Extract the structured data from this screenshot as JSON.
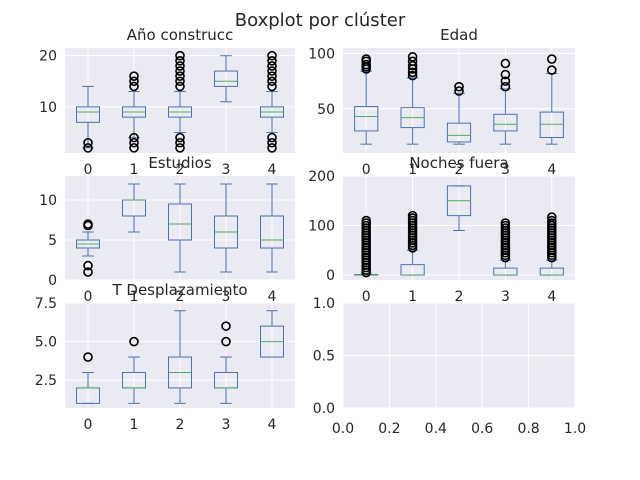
{
  "figure": {
    "suptitle": "Boxplot por clúster"
  },
  "chart_data": [
    {
      "type": "box",
      "title": "Año construcc",
      "categories": [
        "0",
        "1",
        "2",
        "3",
        "4"
      ],
      "ylim": [
        1,
        21.5
      ],
      "yticks": [
        10,
        20
      ],
      "grid": true,
      "boxes": [
        {
          "whislo": 2,
          "q1": 7,
          "med": 9,
          "q3": 10,
          "whishi": 14,
          "fliers": [
            2,
            3
          ]
        },
        {
          "whislo": 4,
          "q1": 8,
          "med": 9,
          "q3": 10,
          "whishi": 13,
          "fliers": [
            2,
            3,
            4,
            14,
            15,
            16
          ]
        },
        {
          "whislo": 5,
          "q1": 8,
          "med": 9,
          "q3": 10,
          "whishi": 13,
          "fliers": [
            2,
            3,
            4,
            14,
            15,
            16,
            17,
            18,
            19,
            20
          ]
        },
        {
          "whislo": 11,
          "q1": 14,
          "med": 15,
          "q3": 17,
          "whishi": 20,
          "fliers": []
        },
        {
          "whislo": 5,
          "q1": 8,
          "med": 9,
          "q3": 10,
          "whishi": 13,
          "fliers": [
            2,
            3,
            4,
            14,
            15,
            16,
            17,
            18,
            19,
            20
          ]
        }
      ]
    },
    {
      "type": "box",
      "title": "Edad",
      "categories": [
        "0",
        "1",
        "2",
        "3",
        "4"
      ],
      "ylim": [
        10,
        105
      ],
      "yticks": [
        50,
        100
      ],
      "grid": true,
      "boxes": [
        {
          "whislo": 18,
          "q1": 30,
          "med": 43,
          "q3": 52,
          "whishi": 84,
          "fliers": [
            86,
            88,
            90,
            93,
            95
          ]
        },
        {
          "whislo": 18,
          "q1": 33,
          "med": 42,
          "q3": 51,
          "whishi": 78,
          "fliers": [
            80,
            83,
            86,
            89,
            93,
            97
          ]
        },
        {
          "whislo": 18,
          "q1": 20,
          "med": 26,
          "q3": 37,
          "whishi": 64,
          "fliers": [
            66,
            70
          ]
        },
        {
          "whislo": 18,
          "q1": 30,
          "med": 36,
          "q3": 45,
          "whishi": 68,
          "fliers": [
            70,
            75,
            81,
            91
          ]
        },
        {
          "whislo": 18,
          "q1": 24,
          "med": 36,
          "q3": 47,
          "whishi": 82,
          "fliers": [
            85,
            95
          ]
        }
      ]
    },
    {
      "type": "box",
      "title": "Estudios",
      "categories": [
        "0",
        "1",
        "2",
        "3",
        "4"
      ],
      "ylim": [
        0,
        13
      ],
      "yticks": [
        0,
        5,
        10
      ],
      "grid": true,
      "boxes": [
        {
          "whislo": 3,
          "q1": 4,
          "med": 4.5,
          "q3": 5,
          "whishi": 6,
          "fliers": [
            1,
            1.8,
            6.8,
            7
          ]
        },
        {
          "whislo": 6,
          "q1": 8,
          "med": 10,
          "q3": 10,
          "whishi": 12,
          "fliers": []
        },
        {
          "whislo": 1,
          "q1": 5,
          "med": 7,
          "q3": 9.5,
          "whishi": 12,
          "fliers": []
        },
        {
          "whislo": 1,
          "q1": 4,
          "med": 6,
          "q3": 8,
          "whishi": 12,
          "fliers": []
        },
        {
          "whislo": 1,
          "q1": 4,
          "med": 5,
          "q3": 8,
          "whishi": 12,
          "fliers": []
        }
      ]
    },
    {
      "type": "box",
      "title": "Noches fuera",
      "categories": [
        "0",
        "1",
        "2",
        "3",
        "4"
      ],
      "ylim": [
        -10,
        200
      ],
      "yticks": [
        0,
        100,
        200
      ],
      "grid": true,
      "boxes": [
        {
          "whislo": 0,
          "q1": 0,
          "med": 0,
          "q3": 1,
          "whishi": 2,
          "fliers": [
            5,
            10,
            15,
            20,
            25,
            30,
            35,
            40,
            45,
            50,
            55,
            60,
            65,
            70,
            75,
            80,
            85,
            90,
            95,
            100,
            105,
            110
          ]
        },
        {
          "whislo": 0,
          "q1": 0,
          "med": 0,
          "q3": 21,
          "whishi": 50,
          "fliers": [
            55,
            60,
            65,
            70,
            75,
            80,
            85,
            90,
            95,
            100,
            105,
            110,
            115,
            120
          ]
        },
        {
          "whislo": 90,
          "q1": 120,
          "med": 150,
          "q3": 180,
          "whishi": 180,
          "fliers": []
        },
        {
          "whislo": 0,
          "q1": 0,
          "med": 0,
          "q3": 14,
          "whishi": 30,
          "fliers": [
            35,
            40,
            45,
            50,
            55,
            60,
            65,
            70,
            75,
            80,
            85,
            90,
            95,
            100,
            105
          ]
        },
        {
          "whislo": 0,
          "q1": 0,
          "med": 0,
          "q3": 14,
          "whishi": 30,
          "fliers": [
            35,
            40,
            45,
            50,
            55,
            60,
            65,
            70,
            75,
            80,
            85,
            90,
            95,
            100,
            105,
            110,
            117
          ]
        }
      ]
    },
    {
      "type": "box",
      "title": "T Desplazamiento",
      "categories": [
        "0",
        "1",
        "2",
        "3",
        "4"
      ],
      "ylim": [
        0.7,
        7.5
      ],
      "yticks": [
        2.5,
        5.0,
        7.5
      ],
      "grid": true,
      "boxes": [
        {
          "whislo": 1,
          "q1": 1,
          "med": 2,
          "q3": 2,
          "whishi": 3,
          "fliers": [
            4
          ]
        },
        {
          "whislo": 1,
          "q1": 2,
          "med": 2,
          "q3": 3,
          "whishi": 4,
          "fliers": [
            5
          ]
        },
        {
          "whislo": 1,
          "q1": 2,
          "med": 3,
          "q3": 4,
          "whishi": 7,
          "fliers": []
        },
        {
          "whislo": 1,
          "q1": 2,
          "med": 2,
          "q3": 3,
          "whishi": 4,
          "fliers": [
            5,
            6
          ]
        },
        {
          "whislo": 4,
          "q1": 4,
          "med": 5,
          "q3": 6,
          "whishi": 7,
          "fliers": []
        }
      ]
    },
    {
      "type": "empty",
      "title": "",
      "xlim": [
        0,
        1
      ],
      "ylim": [
        0,
        1
      ],
      "xticks": [
        "0.0",
        "0.2",
        "0.4",
        "0.6",
        "0.8",
        "1.0"
      ],
      "yticks": [
        "0.0",
        "0.5",
        "1.0"
      ],
      "grid": true
    }
  ]
}
